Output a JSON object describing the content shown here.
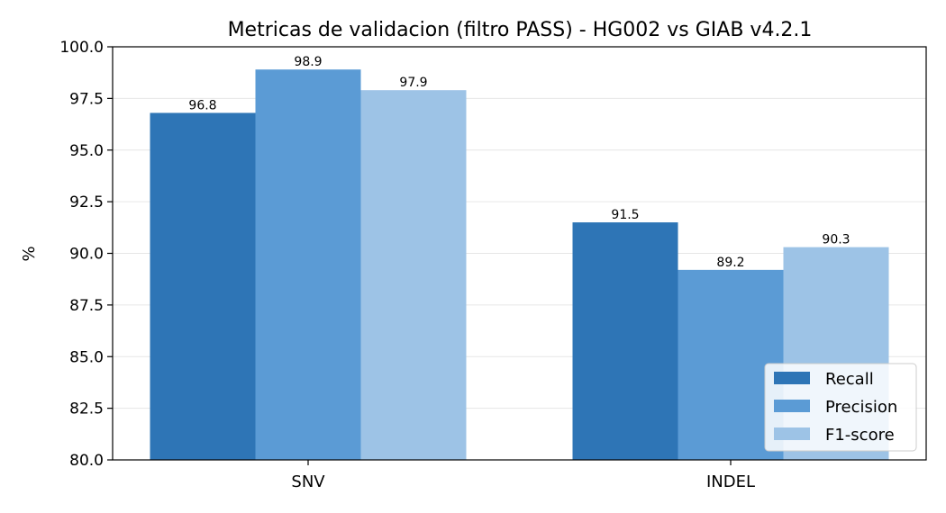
{
  "chart_data": {
    "type": "bar",
    "title": "Metricas de validacion (filtro PASS) - HG002 vs GIAB v4.2.1",
    "xlabel": "",
    "ylabel": "%",
    "ylim": [
      80.0,
      100.0
    ],
    "yticks": [
      "80.0",
      "82.5",
      "85.0",
      "87.5",
      "90.0",
      "92.5",
      "95.0",
      "97.5",
      "100.0"
    ],
    "categories": [
      "SNV",
      "INDEL"
    ],
    "series": [
      {
        "name": "Recall",
        "color": "#2e75b6",
        "values": [
          96.8,
          91.5
        ]
      },
      {
        "name": "Precision",
        "color": "#5b9bd5",
        "values": [
          98.9,
          89.2
        ]
      },
      {
        "name": "F1-score",
        "color": "#9dc3e6",
        "values": [
          97.9,
          90.3
        ]
      }
    ],
    "grid": "horizontal",
    "legend": "lower-right"
  }
}
